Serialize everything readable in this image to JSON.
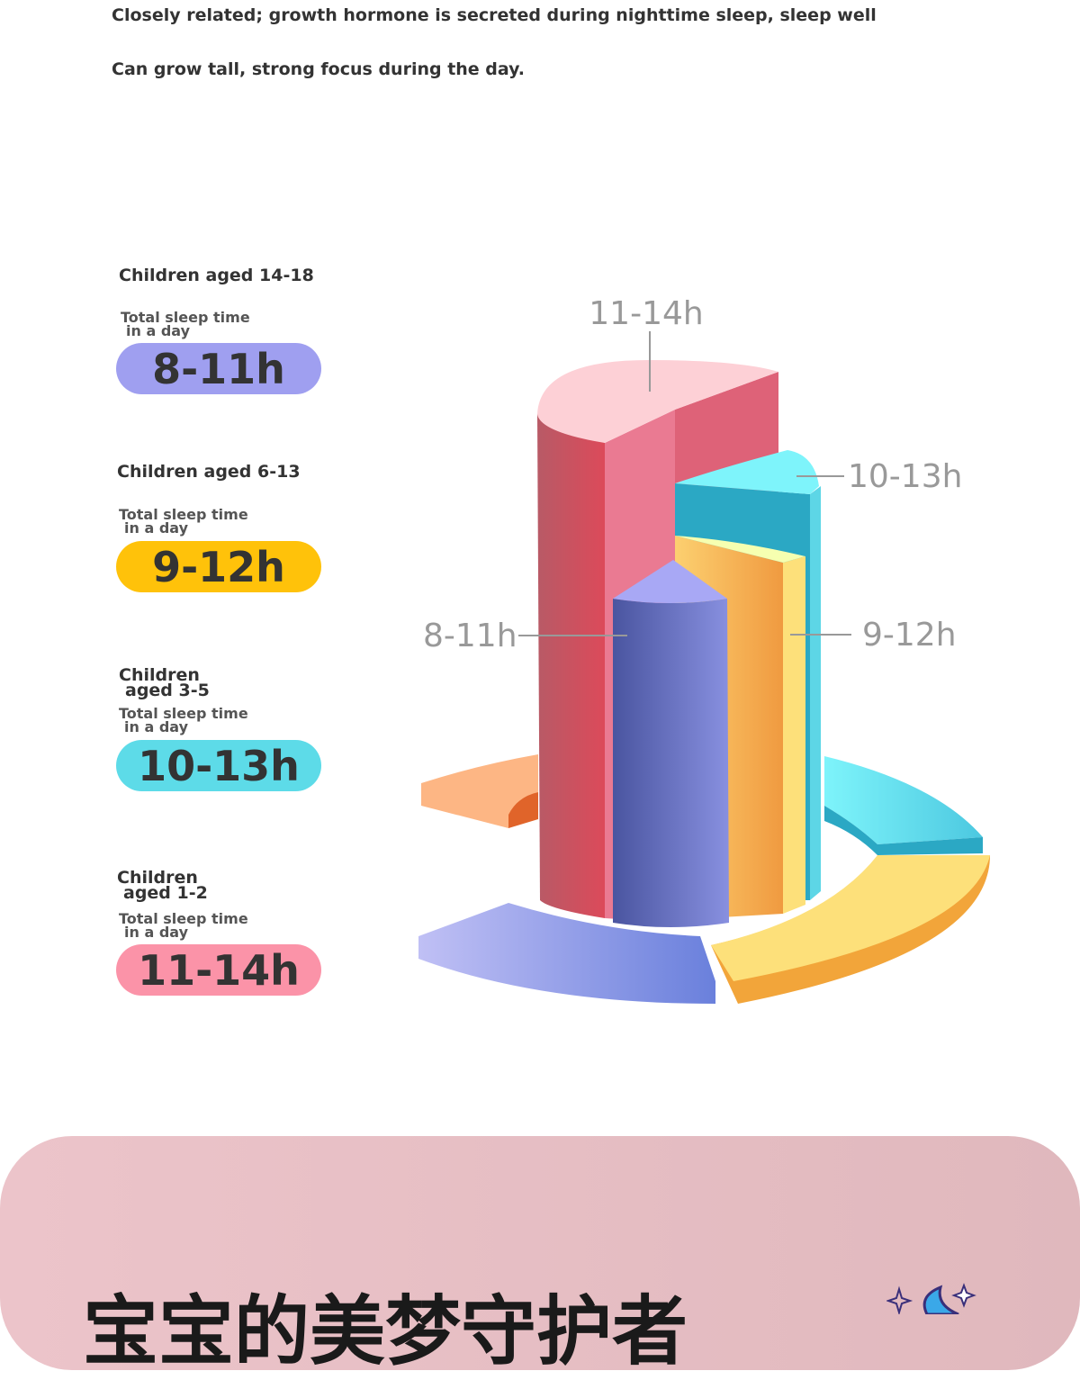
{
  "intro": {
    "lines": [
      "Closely related; growth hormone is secreted during nighttime sleep, sleep well",
      "Can grow tall, strong focus during the day."
    ]
  },
  "groups": [
    {
      "title": [
        "Children aged 14-18"
      ],
      "caption": [
        "Total sleep time",
        "in a day"
      ],
      "hours": "8-11h"
    },
    {
      "title": [
        "Children aged 6-13"
      ],
      "caption": [
        "Total sleep time",
        "in a day"
      ],
      "hours": "9-12h"
    },
    {
      "title": [
        "Children",
        "aged 3-5"
      ],
      "caption": [
        "Total sleep time",
        "in a day"
      ],
      "hours": "10-13h"
    },
    {
      "title": [
        "Children",
        "aged 1-2"
      ],
      "caption": [
        "Total sleep time",
        "in a day"
      ],
      "hours": "11-14h"
    }
  ],
  "chart_labels": [
    "11-14h",
    "10-13h",
    "9-12h",
    "8-11h"
  ],
  "banner": {
    "title": "宝宝的美梦守护者"
  }
}
